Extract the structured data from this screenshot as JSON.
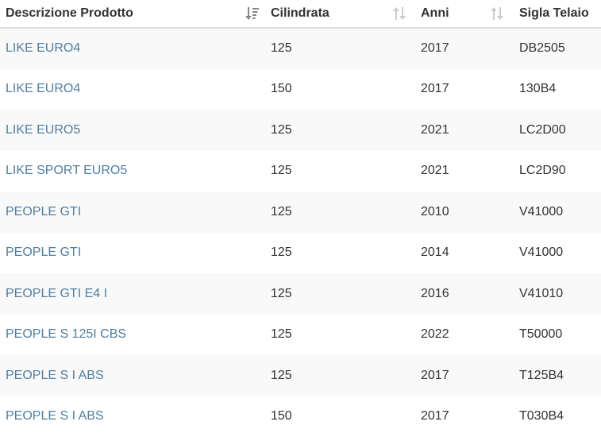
{
  "table": {
    "headers": [
      {
        "label": "Descrizione Prodotto",
        "sort": "sorted-asc"
      },
      {
        "label": "Cilindrata",
        "sort": "unsorted"
      },
      {
        "label": "Anni",
        "sort": "unsorted"
      },
      {
        "label": "Sigla Telaio",
        "sort": "none"
      }
    ],
    "rows": [
      {
        "product": "LIKE EURO4",
        "cc": "125",
        "year": "2017",
        "frame": "DB2505"
      },
      {
        "product": "LIKE EURO4",
        "cc": "150",
        "year": "2017",
        "frame": "130B4"
      },
      {
        "product": "LIKE EURO5",
        "cc": "125",
        "year": "2021",
        "frame": "LC2D00"
      },
      {
        "product": "LIKE SPORT EURO5",
        "cc": "125",
        "year": "2021",
        "frame": "LC2D90"
      },
      {
        "product": "PEOPLE GTI",
        "cc": "125",
        "year": "2010",
        "frame": "V41000"
      },
      {
        "product": "PEOPLE GTI",
        "cc": "125",
        "year": "2014",
        "frame": "V41000"
      },
      {
        "product": "PEOPLE GTI E4 I",
        "cc": "125",
        "year": "2016",
        "frame": "V41010"
      },
      {
        "product": "PEOPLE S 125I CBS",
        "cc": "125",
        "year": "2022",
        "frame": "T50000"
      },
      {
        "product": "PEOPLE S I ABS",
        "cc": "125",
        "year": "2017",
        "frame": "T125B4"
      },
      {
        "product": "PEOPLE S I ABS",
        "cc": "150",
        "year": "2017",
        "frame": "T030B4"
      }
    ]
  },
  "colors": {
    "link": "#4f7ea3",
    "text": "#333333",
    "stripe": "#f9f9f9",
    "sort_active": "#888888",
    "sort_inactive": "#cccccc"
  },
  "icons": {
    "sorted_asc": "sort-amount-asc-icon",
    "unsorted": "sort-both-icon"
  }
}
